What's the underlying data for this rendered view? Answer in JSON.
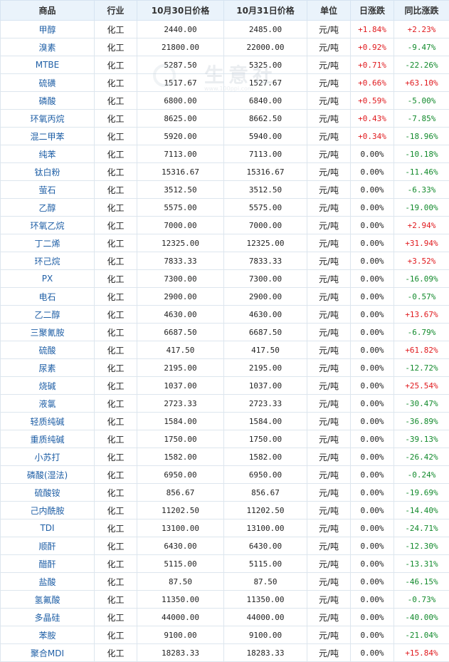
{
  "table": {
    "headers": [
      "商品",
      "行业",
      "10月30日价格",
      "10月31日价格",
      "单位",
      "日涨跌",
      "同比涨跌"
    ],
    "rows": [
      {
        "name": "甲醇",
        "industry": "化工",
        "p1": "2440.00",
        "p2": "2485.00",
        "unit": "元/吨",
        "day": "+1.84%",
        "yoy": "+2.23%"
      },
      {
        "name": "溴素",
        "industry": "化工",
        "p1": "21800.00",
        "p2": "22000.00",
        "unit": "元/吨",
        "day": "+0.92%",
        "yoy": "-9.47%"
      },
      {
        "name": "MTBE",
        "industry": "化工",
        "p1": "5287.50",
        "p2": "5325.00",
        "unit": "元/吨",
        "day": "+0.71%",
        "yoy": "-22.26%"
      },
      {
        "name": "硫磺",
        "industry": "化工",
        "p1": "1517.67",
        "p2": "1527.67",
        "unit": "元/吨",
        "day": "+0.66%",
        "yoy": "+63.10%"
      },
      {
        "name": "磷酸",
        "industry": "化工",
        "p1": "6800.00",
        "p2": "6840.00",
        "unit": "元/吨",
        "day": "+0.59%",
        "yoy": "-5.00%"
      },
      {
        "name": "环氧丙烷",
        "industry": "化工",
        "p1": "8625.00",
        "p2": "8662.50",
        "unit": "元/吨",
        "day": "+0.43%",
        "yoy": "-7.85%"
      },
      {
        "name": "混二甲苯",
        "industry": "化工",
        "p1": "5920.00",
        "p2": "5940.00",
        "unit": "元/吨",
        "day": "+0.34%",
        "yoy": "-18.96%"
      },
      {
        "name": "纯苯",
        "industry": "化工",
        "p1": "7113.00",
        "p2": "7113.00",
        "unit": "元/吨",
        "day": "0.00%",
        "yoy": "-10.18%"
      },
      {
        "name": "钛白粉",
        "industry": "化工",
        "p1": "15316.67",
        "p2": "15316.67",
        "unit": "元/吨",
        "day": "0.00%",
        "yoy": "-11.46%"
      },
      {
        "name": "萤石",
        "industry": "化工",
        "p1": "3512.50",
        "p2": "3512.50",
        "unit": "元/吨",
        "day": "0.00%",
        "yoy": "-6.33%"
      },
      {
        "name": "乙醇",
        "industry": "化工",
        "p1": "5575.00",
        "p2": "5575.00",
        "unit": "元/吨",
        "day": "0.00%",
        "yoy": "-19.00%"
      },
      {
        "name": "环氧乙烷",
        "industry": "化工",
        "p1": "7000.00",
        "p2": "7000.00",
        "unit": "元/吨",
        "day": "0.00%",
        "yoy": "+2.94%"
      },
      {
        "name": "丁二烯",
        "industry": "化工",
        "p1": "12325.00",
        "p2": "12325.00",
        "unit": "元/吨",
        "day": "0.00%",
        "yoy": "+31.94%"
      },
      {
        "name": "环己烷",
        "industry": "化工",
        "p1": "7833.33",
        "p2": "7833.33",
        "unit": "元/吨",
        "day": "0.00%",
        "yoy": "+3.52%"
      },
      {
        "name": "PX",
        "industry": "化工",
        "p1": "7300.00",
        "p2": "7300.00",
        "unit": "元/吨",
        "day": "0.00%",
        "yoy": "-16.09%"
      },
      {
        "name": "电石",
        "industry": "化工",
        "p1": "2900.00",
        "p2": "2900.00",
        "unit": "元/吨",
        "day": "0.00%",
        "yoy": "-0.57%"
      },
      {
        "name": "乙二醇",
        "industry": "化工",
        "p1": "4630.00",
        "p2": "4630.00",
        "unit": "元/吨",
        "day": "0.00%",
        "yoy": "+13.67%"
      },
      {
        "name": "三聚氰胺",
        "industry": "化工",
        "p1": "6687.50",
        "p2": "6687.50",
        "unit": "元/吨",
        "day": "0.00%",
        "yoy": "-6.79%"
      },
      {
        "name": "硫酸",
        "industry": "化工",
        "p1": "417.50",
        "p2": "417.50",
        "unit": "元/吨",
        "day": "0.00%",
        "yoy": "+61.82%"
      },
      {
        "name": "尿素",
        "industry": "化工",
        "p1": "2195.00",
        "p2": "2195.00",
        "unit": "元/吨",
        "day": "0.00%",
        "yoy": "-12.72%"
      },
      {
        "name": "烧碱",
        "industry": "化工",
        "p1": "1037.00",
        "p2": "1037.00",
        "unit": "元/吨",
        "day": "0.00%",
        "yoy": "+25.54%"
      },
      {
        "name": "液氯",
        "industry": "化工",
        "p1": "2723.33",
        "p2": "2723.33",
        "unit": "元/吨",
        "day": "0.00%",
        "yoy": "-30.47%"
      },
      {
        "name": "轻质纯碱",
        "industry": "化工",
        "p1": "1584.00",
        "p2": "1584.00",
        "unit": "元/吨",
        "day": "0.00%",
        "yoy": "-36.89%"
      },
      {
        "name": "重质纯碱",
        "industry": "化工",
        "p1": "1750.00",
        "p2": "1750.00",
        "unit": "元/吨",
        "day": "0.00%",
        "yoy": "-39.13%"
      },
      {
        "name": "小苏打",
        "industry": "化工",
        "p1": "1582.00",
        "p2": "1582.00",
        "unit": "元/吨",
        "day": "0.00%",
        "yoy": "-26.42%"
      },
      {
        "name": "磷酸(湿法)",
        "industry": "化工",
        "p1": "6950.00",
        "p2": "6950.00",
        "unit": "元/吨",
        "day": "0.00%",
        "yoy": "-0.24%"
      },
      {
        "name": "硫酸铵",
        "industry": "化工",
        "p1": "856.67",
        "p2": "856.67",
        "unit": "元/吨",
        "day": "0.00%",
        "yoy": "-19.69%"
      },
      {
        "name": "己内酰胺",
        "industry": "化工",
        "p1": "11202.50",
        "p2": "11202.50",
        "unit": "元/吨",
        "day": "0.00%",
        "yoy": "-14.40%"
      },
      {
        "name": "TDI",
        "industry": "化工",
        "p1": "13100.00",
        "p2": "13100.00",
        "unit": "元/吨",
        "day": "0.00%",
        "yoy": "-24.71%"
      },
      {
        "name": "顺酐",
        "industry": "化工",
        "p1": "6430.00",
        "p2": "6430.00",
        "unit": "元/吨",
        "day": "0.00%",
        "yoy": "-12.30%"
      },
      {
        "name": "醋酐",
        "industry": "化工",
        "p1": "5115.00",
        "p2": "5115.00",
        "unit": "元/吨",
        "day": "0.00%",
        "yoy": "-13.31%"
      },
      {
        "name": "盐酸",
        "industry": "化工",
        "p1": "87.50",
        "p2": "87.50",
        "unit": "元/吨",
        "day": "0.00%",
        "yoy": "-46.15%"
      },
      {
        "name": "氢氟酸",
        "industry": "化工",
        "p1": "11350.00",
        "p2": "11350.00",
        "unit": "元/吨",
        "day": "0.00%",
        "yoy": "-0.73%"
      },
      {
        "name": "多晶硅",
        "industry": "化工",
        "p1": "44000.00",
        "p2": "44000.00",
        "unit": "元/吨",
        "day": "0.00%",
        "yoy": "-40.00%"
      },
      {
        "name": "苯胺",
        "industry": "化工",
        "p1": "9100.00",
        "p2": "9100.00",
        "unit": "元/吨",
        "day": "0.00%",
        "yoy": "-21.04%"
      },
      {
        "name": "聚合MDI",
        "industry": "化工",
        "p1": "18283.33",
        "p2": "18283.33",
        "unit": "元/吨",
        "day": "0.00%",
        "yoy": "+15.84%"
      }
    ]
  },
  "watermark": {
    "text": "生意社",
    "url": "www.100ppi.com",
    "logo_icon": "ring-logo-icon"
  },
  "colors": {
    "up": "#e0191d",
    "down": "#128a2c",
    "link": "#1f5fa6",
    "header_bg": "#eaf3fb"
  }
}
